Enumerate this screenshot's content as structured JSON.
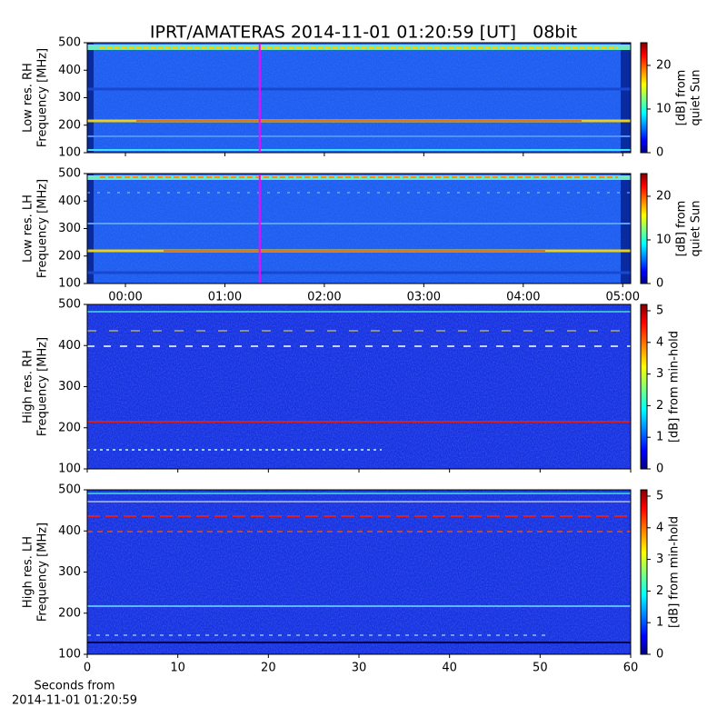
{
  "chart_data": [
    {
      "type": "heatmap",
      "title": "IPRT/AMATERAS 2014-11-01 01:20:59 [UT]   08bit",
      "ylabel": [
        "Low res. RH",
        "Frequency [MHz]"
      ],
      "xlim": [
        -0.384,
        5.08
      ],
      "xticks": [
        0,
        1,
        2,
        3,
        4,
        5
      ],
      "ylim": [
        100,
        500
      ],
      "yticks": [
        100,
        200,
        300,
        400,
        500
      ],
      "cursor": {
        "x": 1.35,
        "color": "#ff00ff"
      },
      "colorbar": {
        "label": [
          "[dB] from",
          "quiet Sun"
        ],
        "clim": [
          0,
          25.2
        ],
        "ticks": [
          0,
          10,
          20
        ],
        "colormap": "jet"
      }
    },
    {
      "type": "heatmap",
      "ylabel": [
        "Low res. LH",
        "Frequency [MHz]"
      ],
      "xlim": [
        -0.384,
        5.08
      ],
      "xticks": [
        {
          "value": 0,
          "label": "00:00"
        },
        {
          "value": 1,
          "label": "01:00"
        },
        {
          "value": 2,
          "label": "02:00"
        },
        {
          "value": 3,
          "label": "03:00"
        },
        {
          "value": 4,
          "label": "04:00"
        },
        {
          "value": 5,
          "label": "05:00"
        }
      ],
      "ylim": [
        100,
        500
      ],
      "yticks": [
        100,
        200,
        300,
        400,
        500
      ],
      "cursor": {
        "x": 1.35,
        "color": "#ff00ff"
      },
      "colorbar": {
        "label": [
          "[dB] from",
          "quiet Sun"
        ],
        "clim": [
          0,
          25.2
        ],
        "ticks": [
          0,
          10,
          20
        ],
        "colormap": "jet"
      }
    },
    {
      "type": "heatmap",
      "ylabel": [
        "High res. RH",
        "Frequency [MHz]"
      ],
      "xlim": [
        0,
        60
      ],
      "xticks": [
        0,
        10,
        20,
        30,
        40,
        50,
        60
      ],
      "ylim": [
        100,
        500
      ],
      "yticks": [
        100,
        200,
        300,
        400,
        500
      ],
      "colorbar": {
        "label": [
          "[dB] from min-hold"
        ],
        "clim": [
          0,
          5.2
        ],
        "ticks": [
          0,
          1,
          2,
          3,
          4,
          5
        ],
        "colormap": "jet"
      }
    },
    {
      "type": "heatmap",
      "ylabel": [
        "High res. LH",
        "Frequency [MHz]"
      ],
      "xlabel": [
        "Seconds from",
        "2014-11-01 01:20:59"
      ],
      "xlim": [
        0,
        60
      ],
      "xticks": [
        0,
        10,
        20,
        30,
        40,
        50,
        60
      ],
      "ylim": [
        100,
        500
      ],
      "yticks": [
        100,
        200,
        300,
        400,
        500
      ],
      "colorbar": {
        "label": [
          "[dB] from min-hold"
        ],
        "clim": [
          0,
          5.2
        ],
        "ticks": [
          0,
          1,
          2,
          3,
          4,
          5
        ],
        "colormap": "jet"
      }
    }
  ]
}
